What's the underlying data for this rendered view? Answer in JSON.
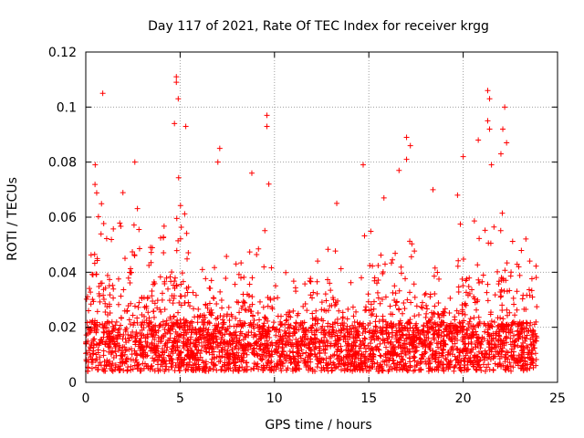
{
  "chart_data": {
    "type": "scatter",
    "title": "Day 117 of 2021, Rate Of TEC Index for receiver krgg",
    "xlabel": "GPS time / hours",
    "ylabel": "ROTI / TECUs",
    "xlim": [
      0,
      25
    ],
    "ylim": [
      0,
      0.12
    ],
    "xticks": [
      0,
      5,
      10,
      15,
      20,
      25
    ],
    "yticks": [
      0,
      0.02,
      0.04,
      0.06,
      0.08,
      0.1,
      0.12
    ],
    "ytick_labels": [
      "0",
      "0.02",
      "0.04",
      "0.06",
      "0.08",
      "0.1",
      "0.12"
    ],
    "grid": true,
    "marker": "plus",
    "color": "#ff0000",
    "envelope": {
      "x": [
        0.0,
        0.5,
        1.0,
        1.5,
        2.0,
        2.5,
        3.0,
        3.5,
        4.0,
        4.5,
        5.0,
        5.5,
        6.0,
        6.5,
        7.0,
        7.5,
        8.0,
        8.5,
        9.0,
        9.5,
        10.0,
        10.5,
        11.0,
        11.5,
        12.0,
        12.5,
        13.0,
        13.5,
        14.0,
        14.5,
        15.0,
        15.5,
        16.0,
        16.5,
        17.0,
        17.5,
        18.0,
        18.5,
        19.0,
        19.5,
        20.0,
        20.5,
        21.0,
        21.5,
        22.0,
        22.5,
        23.0,
        23.5,
        23.9
      ],
      "typical_max": [
        0.045,
        0.07,
        0.06,
        0.055,
        0.07,
        0.075,
        0.05,
        0.055,
        0.06,
        0.06,
        0.075,
        0.05,
        0.045,
        0.04,
        0.05,
        0.045,
        0.04,
        0.05,
        0.045,
        0.06,
        0.04,
        0.035,
        0.04,
        0.035,
        0.04,
        0.045,
        0.05,
        0.04,
        0.04,
        0.045,
        0.055,
        0.045,
        0.04,
        0.045,
        0.05,
        0.045,
        0.05,
        0.04,
        0.045,
        0.04,
        0.06,
        0.055,
        0.06,
        0.06,
        0.06,
        0.055,
        0.045,
        0.05,
        0.04
      ]
    },
    "outliers": [
      {
        "x": 0.9,
        "y": 0.105
      },
      {
        "x": 4.8,
        "y": 0.111
      },
      {
        "x": 4.8,
        "y": 0.109
      },
      {
        "x": 4.9,
        "y": 0.103
      },
      {
        "x": 4.7,
        "y": 0.094
      },
      {
        "x": 5.3,
        "y": 0.093
      },
      {
        "x": 9.6,
        "y": 0.097
      },
      {
        "x": 9.6,
        "y": 0.093
      },
      {
        "x": 7.1,
        "y": 0.085
      },
      {
        "x": 7.0,
        "y": 0.08
      },
      {
        "x": 8.8,
        "y": 0.076
      },
      {
        "x": 9.7,
        "y": 0.072
      },
      {
        "x": 2.6,
        "y": 0.08
      },
      {
        "x": 0.5,
        "y": 0.079
      },
      {
        "x": 14.7,
        "y": 0.079
      },
      {
        "x": 17.0,
        "y": 0.089
      },
      {
        "x": 17.2,
        "y": 0.086
      },
      {
        "x": 17.0,
        "y": 0.081
      },
      {
        "x": 16.6,
        "y": 0.077
      },
      {
        "x": 20.8,
        "y": 0.088
      },
      {
        "x": 20.0,
        "y": 0.082
      },
      {
        "x": 21.3,
        "y": 0.106
      },
      {
        "x": 21.4,
        "y": 0.103
      },
      {
        "x": 21.3,
        "y": 0.095
      },
      {
        "x": 21.4,
        "y": 0.092
      },
      {
        "x": 22.1,
        "y": 0.092
      },
      {
        "x": 22.2,
        "y": 0.1
      },
      {
        "x": 22.3,
        "y": 0.087
      },
      {
        "x": 21.5,
        "y": 0.079
      },
      {
        "x": 18.4,
        "y": 0.07
      },
      {
        "x": 13.3,
        "y": 0.065
      },
      {
        "x": 15.8,
        "y": 0.067
      },
      {
        "x": 19.7,
        "y": 0.068
      },
      {
        "x": 22.0,
        "y": 0.083
      }
    ]
  }
}
